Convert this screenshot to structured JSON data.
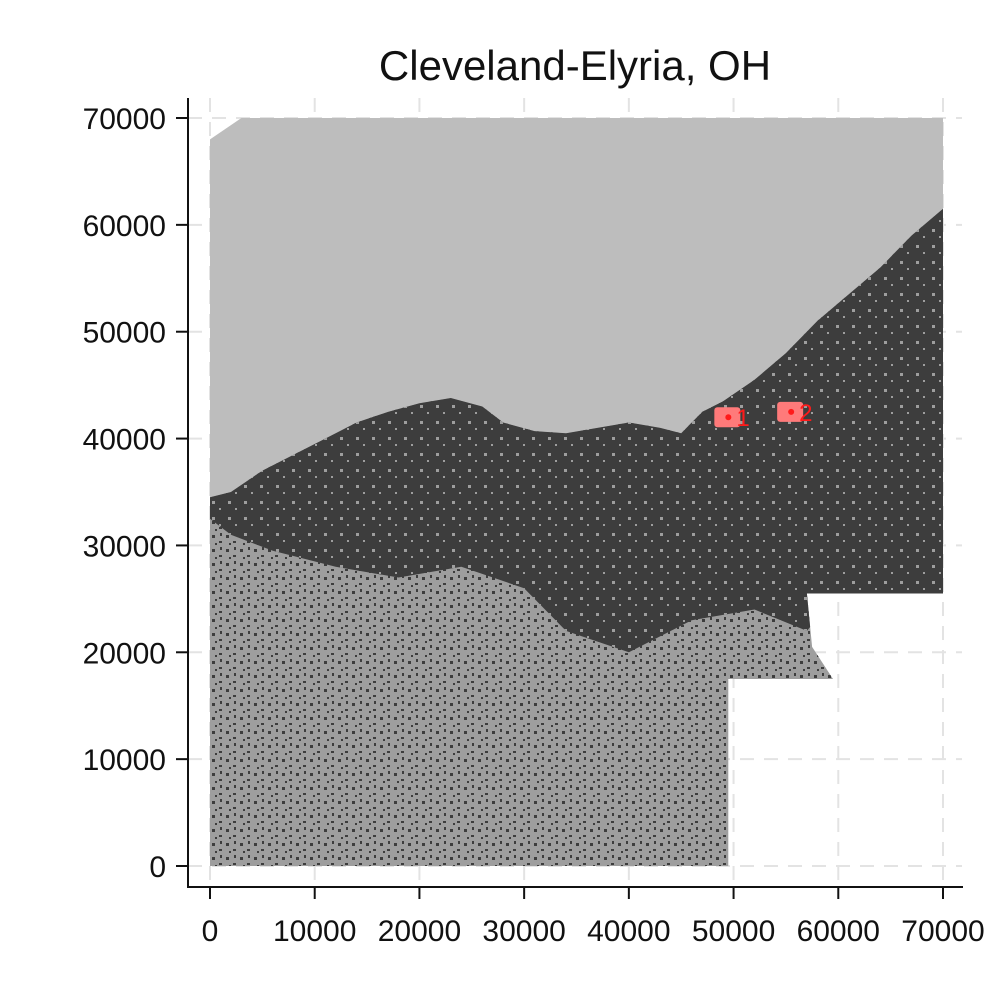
{
  "chart_data": {
    "type": "heatmap",
    "title": "Cleveland-Elyria, OH",
    "xlabel": "",
    "ylabel": "",
    "xlim": [
      0,
      70000
    ],
    "ylim": [
      0,
      70000
    ],
    "x_ticks": [
      0,
      10000,
      20000,
      30000,
      40000,
      50000,
      60000,
      70000
    ],
    "y_ticks": [
      0,
      10000,
      20000,
      30000,
      40000,
      50000,
      60000,
      70000
    ],
    "x_tick_labels": [
      "0",
      "10000",
      "20000",
      "30000",
      "40000",
      "50000",
      "60000",
      "70000"
    ],
    "y_tick_labels": [
      "0",
      "10000",
      "20000",
      "30000",
      "40000",
      "50000",
      "60000",
      "70000"
    ],
    "grid": true,
    "legend": "none",
    "colors": {
      "water": "#bdbdbd",
      "developed": "#3d3d3d",
      "undeveloped": "#9e9e9e",
      "markers": "#ff7a7a",
      "marker_labels": "#ff1a1a",
      "grid": "#e3e3e3"
    },
    "regions": {
      "lake_shoreline": [
        [
          0,
          34500
        ],
        [
          2000,
          35000
        ],
        [
          5000,
          37000
        ],
        [
          8000,
          38500
        ],
        [
          11000,
          40000
        ],
        [
          14000,
          41500
        ],
        [
          17000,
          42500
        ],
        [
          20000,
          43300
        ],
        [
          23000,
          43800
        ],
        [
          26000,
          43000
        ],
        [
          28000,
          41500
        ],
        [
          31000,
          40700
        ],
        [
          34000,
          40500
        ],
        [
          37000,
          41000
        ],
        [
          40000,
          41500
        ],
        [
          43000,
          41000
        ],
        [
          45000,
          40500
        ],
        [
          47000,
          42500
        ],
        [
          49000,
          43500
        ],
        [
          52000,
          45500
        ],
        [
          55000,
          48000
        ],
        [
          58000,
          51000
        ],
        [
          61000,
          53500
        ],
        [
          64000,
          56000
        ],
        [
          67000,
          59000
        ],
        [
          70000,
          61500
        ]
      ],
      "data_extent": [
        [
          0,
          0
        ],
        [
          49500,
          0
        ],
        [
          49500,
          17500
        ],
        [
          59500,
          17500
        ],
        [
          57500,
          20500
        ],
        [
          57000,
          25500
        ],
        [
          70000,
          25500
        ],
        [
          70000,
          70000
        ],
        [
          3000,
          70000
        ],
        [
          0,
          68000
        ]
      ]
    },
    "markers": [
      {
        "label": "1",
        "x": 49500,
        "y": 42000
      },
      {
        "label": "2",
        "x": 55500,
        "y": 42500
      }
    ]
  }
}
